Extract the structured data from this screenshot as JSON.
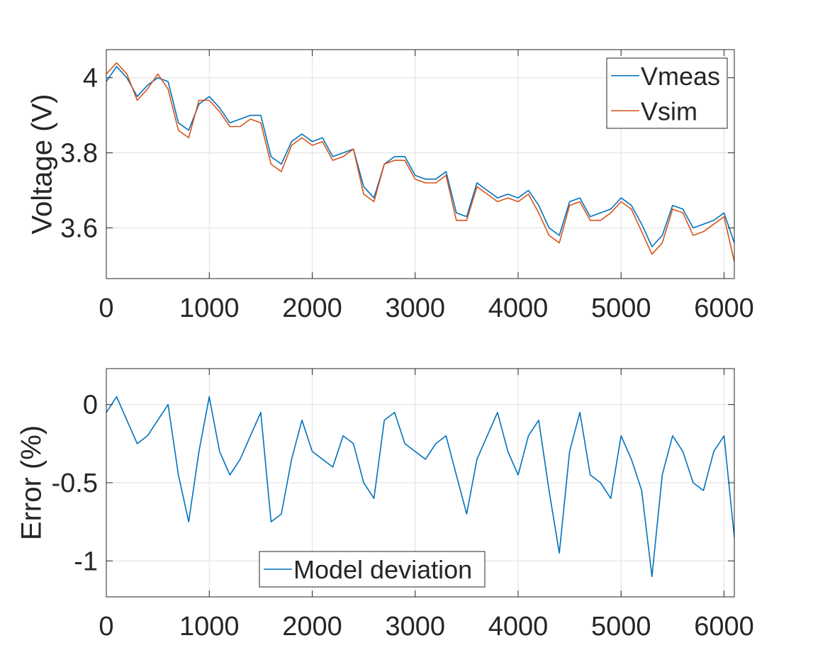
{
  "chart_data": [
    {
      "type": "line",
      "title": "",
      "xlabel": "",
      "ylabel": "Voltage (V)",
      "xlim": [
        0,
        6100
      ],
      "ylim": [
        3.465,
        4.075
      ],
      "xticks": [
        0,
        1000,
        2000,
        3000,
        4000,
        5000,
        6000
      ],
      "xtick_labels": [
        "0",
        "1000",
        "2000",
        "3000",
        "4000",
        "5000",
        "6000"
      ],
      "yticks": [
        3.6,
        3.8,
        4.0
      ],
      "ytick_labels": [
        "3.6",
        "3.8",
        "4"
      ],
      "grid": true,
      "legend": "top-right",
      "series": [
        {
          "name": "Vmeas",
          "color": "#0072bd",
          "x": [
            0,
            100,
            200,
            300,
            400,
            500,
            600,
            700,
            800,
            900,
            1000,
            1100,
            1200,
            1300,
            1400,
            1500,
            1600,
            1700,
            1800,
            1900,
            2000,
            2100,
            2200,
            2300,
            2400,
            2500,
            2600,
            2700,
            2800,
            2900,
            3000,
            3100,
            3200,
            3300,
            3400,
            3500,
            3600,
            3700,
            3800,
            3900,
            4000,
            4100,
            4200,
            4300,
            4400,
            4500,
            4600,
            4700,
            4800,
            4900,
            5000,
            5100,
            5200,
            5300,
            5400,
            5500,
            5600,
            5700,
            5800,
            5900,
            6000,
            6100
          ],
          "y": [
            3.99,
            4.03,
            4.0,
            3.95,
            3.98,
            4.0,
            3.99,
            3.88,
            3.86,
            3.93,
            3.95,
            3.92,
            3.88,
            3.89,
            3.9,
            3.9,
            3.79,
            3.77,
            3.83,
            3.85,
            3.83,
            3.84,
            3.79,
            3.8,
            3.81,
            3.71,
            3.68,
            3.77,
            3.79,
            3.79,
            3.74,
            3.73,
            3.73,
            3.75,
            3.64,
            3.63,
            3.72,
            3.7,
            3.68,
            3.69,
            3.68,
            3.7,
            3.66,
            3.6,
            3.58,
            3.67,
            3.68,
            3.63,
            3.64,
            3.65,
            3.68,
            3.66,
            3.61,
            3.55,
            3.58,
            3.66,
            3.65,
            3.6,
            3.61,
            3.62,
            3.64,
            3.56
          ]
        },
        {
          "name": "Vsim",
          "color": "#d95319",
          "x": [
            0,
            100,
            200,
            300,
            400,
            500,
            600,
            700,
            800,
            900,
            1000,
            1100,
            1200,
            1300,
            1400,
            1500,
            1600,
            1700,
            1800,
            1900,
            2000,
            2100,
            2200,
            2300,
            2400,
            2500,
            2600,
            2700,
            2800,
            2900,
            3000,
            3100,
            3200,
            3300,
            3400,
            3500,
            3600,
            3700,
            3800,
            3900,
            4000,
            4100,
            4200,
            4300,
            4400,
            4500,
            4600,
            4700,
            4800,
            4900,
            5000,
            5100,
            5200,
            5300,
            5400,
            5500,
            5600,
            5700,
            5800,
            5900,
            6000,
            6100
          ],
          "y": [
            4.01,
            4.04,
            4.01,
            3.94,
            3.97,
            4.01,
            3.97,
            3.86,
            3.84,
            3.94,
            3.94,
            3.91,
            3.87,
            3.87,
            3.89,
            3.88,
            3.77,
            3.75,
            3.82,
            3.84,
            3.82,
            3.83,
            3.78,
            3.79,
            3.81,
            3.69,
            3.67,
            3.77,
            3.78,
            3.78,
            3.73,
            3.72,
            3.72,
            3.74,
            3.62,
            3.62,
            3.71,
            3.69,
            3.67,
            3.68,
            3.67,
            3.69,
            3.64,
            3.58,
            3.56,
            3.66,
            3.67,
            3.62,
            3.62,
            3.64,
            3.67,
            3.65,
            3.59,
            3.53,
            3.56,
            3.65,
            3.64,
            3.58,
            3.59,
            3.61,
            3.63,
            3.51
          ]
        }
      ]
    },
    {
      "type": "line",
      "title": "",
      "xlabel": "",
      "ylabel": "Error (%)",
      "xlim": [
        0,
        6100
      ],
      "ylim": [
        -1.23,
        0.23
      ],
      "xticks": [
        0,
        1000,
        2000,
        3000,
        4000,
        5000,
        6000
      ],
      "xtick_labels": [
        "0",
        "1000",
        "2000",
        "3000",
        "4000",
        "5000",
        "6000"
      ],
      "yticks": [
        -1,
        -0.5,
        0
      ],
      "ytick_labels": [
        "-1",
        "-0.5",
        "0"
      ],
      "grid": true,
      "legend": "bottom-left",
      "series": [
        {
          "name": "Model deviation",
          "color": "#0072bd",
          "x": [
            0,
            100,
            200,
            300,
            400,
            500,
            600,
            700,
            800,
            900,
            1000,
            1100,
            1200,
            1300,
            1400,
            1500,
            1600,
            1700,
            1800,
            1900,
            2000,
            2100,
            2200,
            2300,
            2400,
            2500,
            2600,
            2700,
            2800,
            2900,
            3000,
            3100,
            3200,
            3300,
            3400,
            3500,
            3600,
            3700,
            3800,
            3900,
            4000,
            4100,
            4200,
            4300,
            4400,
            4500,
            4600,
            4700,
            4800,
            4900,
            5000,
            5100,
            5200,
            5300,
            5400,
            5500,
            5600,
            5700,
            5800,
            5900,
            6000,
            6100
          ],
          "y": [
            -0.05,
            0.05,
            -0.1,
            -0.25,
            -0.2,
            -0.1,
            0.0,
            -0.45,
            -0.75,
            -0.3,
            0.05,
            -0.3,
            -0.45,
            -0.35,
            -0.2,
            -0.05,
            -0.75,
            -0.7,
            -0.35,
            -0.1,
            -0.3,
            -0.35,
            -0.4,
            -0.2,
            -0.25,
            -0.5,
            -0.6,
            -0.1,
            -0.05,
            -0.25,
            -0.3,
            -0.35,
            -0.25,
            -0.2,
            -0.45,
            -0.7,
            -0.35,
            -0.2,
            -0.05,
            -0.3,
            -0.45,
            -0.2,
            -0.1,
            -0.55,
            -0.95,
            -0.3,
            -0.05,
            -0.45,
            -0.5,
            -0.6,
            -0.2,
            -0.35,
            -0.55,
            -1.1,
            -0.45,
            -0.2,
            -0.3,
            -0.5,
            -0.55,
            -0.3,
            -0.2,
            -0.85
          ]
        }
      ]
    }
  ]
}
